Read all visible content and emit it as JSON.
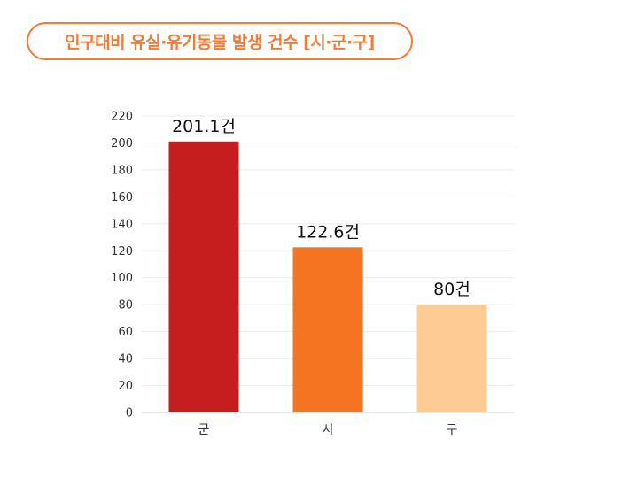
{
  "title": "인구대비 유실·유기동물 발생 건수 [시·군·구]",
  "chart_data": {
    "type": "bar",
    "title": "인구대비 유실·유기동물 발생 건수 [시·군·구]",
    "categories": [
      "군",
      "시",
      "구"
    ],
    "values": [
      201.1,
      122.6,
      80
    ],
    "data_labels": [
      "201.1건",
      "122.6건",
      "80건"
    ],
    "colors": [
      "#c61d1f",
      "#f47421",
      "#ffcb95"
    ],
    "xlabel": "",
    "ylabel": "",
    "ylim": [
      0,
      220
    ],
    "yticks": [
      0,
      20,
      40,
      60,
      80,
      100,
      120,
      140,
      160,
      180,
      200,
      220
    ],
    "grid": true,
    "legend": "none"
  }
}
